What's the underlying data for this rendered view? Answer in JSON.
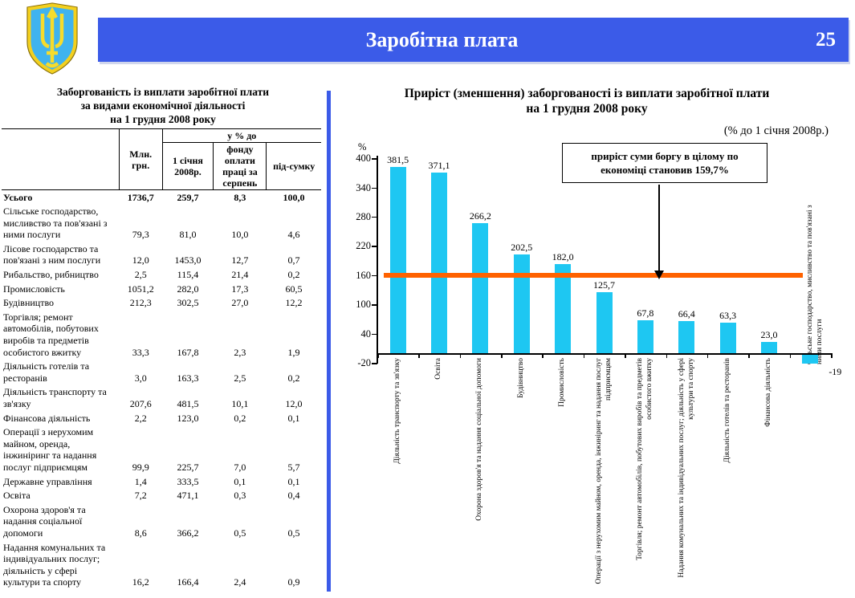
{
  "header": {
    "title": "Заробітна плата",
    "page_number": "25"
  },
  "table": {
    "title_lines": [
      "Заборгованість із виплати заробітної плати",
      "за видами економічної діяльності",
      "на 1 грудня 2008 року"
    ],
    "columns": {
      "mln": "Млн. грн.",
      "group": "у % до",
      "sub": [
        "1 січня 2008р.",
        "фонду оплати праці за серпень",
        "під-сумку"
      ]
    },
    "rows": [
      {
        "label": "Усього",
        "bold": true,
        "values": [
          "1736,7",
          "259,7",
          "8,3",
          "100,0"
        ]
      },
      {
        "label": "Сільське господарство, мисливство та пов'язані з ними послуги",
        "values": [
          "79,3",
          "81,0",
          "10,0",
          "4,6"
        ]
      },
      {
        "label": "Лісове господарство  та пов'язані з ним послуги",
        "values": [
          "12,0",
          "1453,0",
          "12,7",
          "0,7"
        ]
      },
      {
        "label": "Рибальство, рибництво",
        "values": [
          "2,5",
          "115,4",
          "21,4",
          "0,2"
        ]
      },
      {
        "label": "Промисловість",
        "values": [
          "1051,2",
          "282,0",
          "17,3",
          "60,5"
        ]
      },
      {
        "label": "Будівництво",
        "values": [
          "212,3",
          "302,5",
          "27,0",
          "12,2"
        ]
      },
      {
        "label": "Торгівля; ремонт автомобілів, побутових виробів та предметів особистого вжитку",
        "values": [
          "33,3",
          "167,8",
          "2,3",
          "1,9"
        ]
      },
      {
        "label": "Діяльність готелів та ресторанів",
        "values": [
          "3,0",
          "163,3",
          "2,5",
          "0,2"
        ]
      },
      {
        "label": "Діяльність транспорту та зв'язку",
        "values": [
          "207,6",
          "481,5",
          "10,1",
          "12,0"
        ]
      },
      {
        "label": "Фінансова діяльність",
        "values": [
          "2,2",
          "123,0",
          "0,2",
          "0,1"
        ]
      },
      {
        "label": "Операції з нерухомим майном, оренда, інжиніринг та надання послуг підприємцям",
        "values": [
          "99,9",
          "225,7",
          "7,0",
          "5,7"
        ]
      },
      {
        "label": "Державне управління",
        "values": [
          "1,4",
          "333,5",
          "0,1",
          "0,1"
        ]
      },
      {
        "label": "Освіта",
        "values": [
          "7,2",
          "471,1",
          "0,3",
          "0,4"
        ]
      },
      {
        "label": "Охорона здоров'я та надання соціальної допомоги",
        "values": [
          "8,6",
          "366,2",
          "0,5",
          "0,5"
        ]
      },
      {
        "label": "Надання комунальних та індивідуальних послуг; діяльність у сфері культури та спорту",
        "values": [
          "16,2",
          "166,4",
          "2,4",
          "0,9"
        ]
      }
    ]
  },
  "chart_data": {
    "type": "bar",
    "title": "Приріст (зменшення) заборгованості із виплати заробітної плати",
    "title_line2": "на 1 грудня 2008 року",
    "subtitle": "(% до 1 січня 2008р.)",
    "ylabel": "%",
    "ylim": [
      -20,
      400
    ],
    "yticks": [
      400,
      340,
      280,
      220,
      160,
      100,
      40,
      -20
    ],
    "grid": false,
    "legend": "none",
    "bar_color": "#1EC7F2",
    "categories": [
      "Діяльність транспорту та зв'язку",
      "Освіта",
      "Охорона здоров'я та надання соціальної допомоги",
      "Будівництво",
      "Промисловість",
      "Операції з нерухомим майном, оренда, інжиніринг та надання послуг підприємцям",
      "Торгівля; ремонт автомобілів, побутових виробів та предметів особистого вжитку",
      "Надання комунальних та індивідуальних послуг; діяльність у сфері культури та спорту",
      "Діяльність готелів та ресторанів",
      "Фінансова діяльність",
      "Сільське господарство, мисливство та пов'язані з ними послуги"
    ],
    "values": [
      381.5,
      371.1,
      266.2,
      202.5,
      182.0,
      125.7,
      67.8,
      66.4,
      63.3,
      23.0,
      -19
    ],
    "value_labels": [
      "381,5",
      "371,1",
      "266,2",
      "202,5",
      "182,0",
      "125,7",
      "67,8",
      "66,4",
      "63,3",
      "23,0",
      "-19"
    ],
    "reference_line": {
      "value": 159.7,
      "color": "#FF6200",
      "label": "приріст суми боргу в цілому по економіці становив 159,7%"
    }
  }
}
